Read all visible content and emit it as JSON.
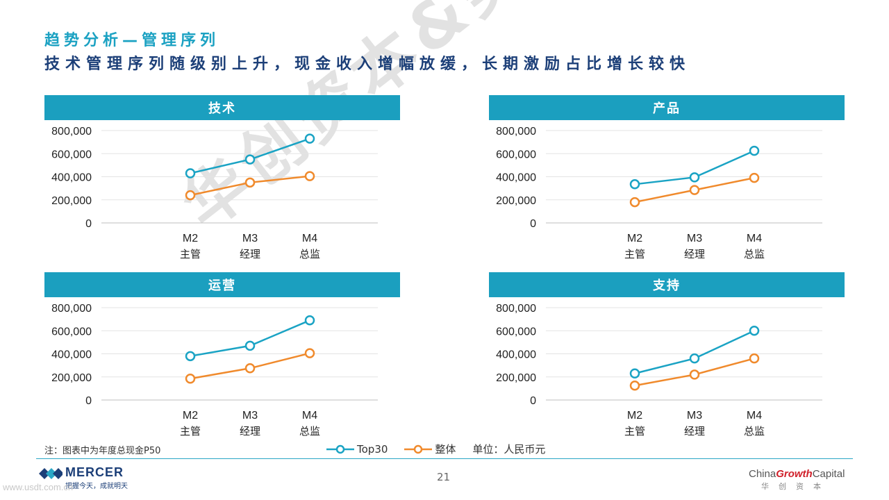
{
  "title": "趋势分析—管理序列",
  "subtitle": "技术管理序列随级别上升，现金收入增幅放缓，长期激励占比增长较快",
  "note": "注：图表中为年度总现金P50",
  "legend": {
    "series1": "Top30",
    "series2": "整体",
    "unit": "单位：人民币元"
  },
  "colors": {
    "top30": "#1aa3c4",
    "overall": "#f08a2c",
    "header": "#1b9fbf"
  },
  "page_number": "21",
  "footer": {
    "brand": "MERCER",
    "slogan": "把握今天，成就明天",
    "website": "www.usdt.com.cn",
    "cgc_prefix": "China",
    "cgc_growth": "Growth",
    "cgc_suffix": "Capital",
    "cgc_cn": "华创资本"
  },
  "watermark": "华创资本&美世",
  "chart_data": [
    {
      "type": "line",
      "title": "技术",
      "categories": [
        "M2",
        "M3",
        "M4"
      ],
      "category_sublabels": [
        "主管",
        "经理",
        "总监"
      ],
      "ylim": [
        0,
        800000
      ],
      "yticks": [
        "800,000",
        "600,000",
        "400,000",
        "200,000",
        "0"
      ],
      "series": [
        {
          "name": "Top30",
          "values": [
            430000,
            550000,
            730000
          ]
        },
        {
          "name": "整体",
          "values": [
            240000,
            350000,
            405000
          ]
        }
      ]
    },
    {
      "type": "line",
      "title": "产品",
      "categories": [
        "M2",
        "M3",
        "M4"
      ],
      "category_sublabels": [
        "主管",
        "经理",
        "总监"
      ],
      "ylim": [
        0,
        800000
      ],
      "yticks": [
        "800,000",
        "600,000",
        "400,000",
        "200,000",
        "0"
      ],
      "series": [
        {
          "name": "Top30",
          "values": [
            335000,
            395000,
            625000
          ]
        },
        {
          "name": "整体",
          "values": [
            180000,
            285000,
            390000
          ]
        }
      ]
    },
    {
      "type": "line",
      "title": "运营",
      "categories": [
        "M2",
        "M3",
        "M4"
      ],
      "category_sublabels": [
        "主管",
        "经理",
        "总监"
      ],
      "ylim": [
        0,
        800000
      ],
      "yticks": [
        "800,000",
        "600,000",
        "400,000",
        "200,000",
        "0"
      ],
      "series": [
        {
          "name": "Top30",
          "values": [
            380000,
            470000,
            690000
          ]
        },
        {
          "name": "整体",
          "values": [
            185000,
            275000,
            405000
          ]
        }
      ]
    },
    {
      "type": "line",
      "title": "支持",
      "categories": [
        "M2",
        "M3",
        "M4"
      ],
      "category_sublabels": [
        "主管",
        "经理",
        "总监"
      ],
      "ylim": [
        0,
        800000
      ],
      "yticks": [
        "800,000",
        "600,000",
        "400,000",
        "200,000",
        "0"
      ],
      "series": [
        {
          "name": "Top30",
          "values": [
            230000,
            360000,
            600000
          ]
        },
        {
          "name": "整体",
          "values": [
            125000,
            220000,
            360000
          ]
        }
      ]
    }
  ]
}
